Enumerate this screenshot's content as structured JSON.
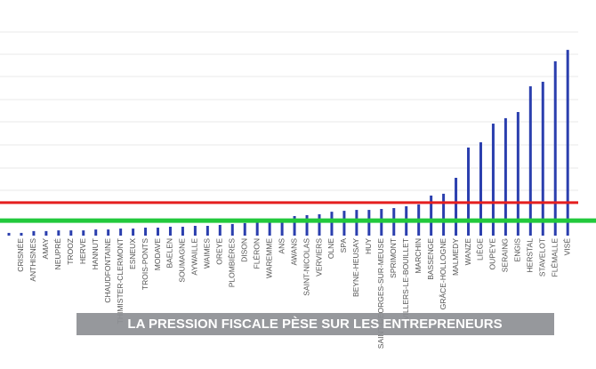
{
  "chart_data": {
    "type": "bar",
    "caption": "LA PRESSION FISCALE PÈSE SUR LES ENTREPRENEURS",
    "categories": [
      null,
      "CRISNÉE",
      "ANTHISNES",
      "AMAY",
      "NEUPRÉ",
      "TROOZ",
      "HERVE",
      "HANNUT",
      "CHAUDFONTAINE",
      "THIMISTER-CLERMONT",
      "ESNEUX",
      "TROIS-PONTS",
      "MODAVE",
      "BAELEN",
      "SOUMAGNE",
      "AYWAILLE",
      "WAIMES",
      "OREYE",
      "PLOMBIÈRES",
      "DISON",
      "FLÉRON",
      "WAREMME",
      "ANS",
      "AWANS",
      "SAINT-NICOLAS",
      "VERVIERS",
      "OLNE",
      "SPA",
      "BEYNE-HEUSAY",
      "HUY",
      "SAINT-GEORGES-SUR-MEUSE",
      "SPRIMONT",
      "VILLERS-LE-BOUILLET",
      "MARCHIN",
      "BASSENGE",
      "GRÂCE-HOLLOGNE",
      "MALMEDY",
      "WANZE",
      "LIÈGE",
      "OUPEYE",
      "SERAING",
      "ENGIS",
      "HERSTAL",
      "STAVELOT",
      "FLÉMALLE",
      "VISÉ"
    ],
    "values": [
      0.12,
      0.12,
      0.2,
      0.2,
      0.23,
      0.23,
      0.23,
      0.27,
      0.27,
      0.31,
      0.31,
      0.35,
      0.35,
      0.39,
      0.39,
      0.43,
      0.43,
      0.47,
      0.51,
      0.55,
      0.59,
      0.62,
      0.7,
      0.86,
      0.9,
      0.94,
      1.05,
      1.09,
      1.13,
      1.13,
      1.17,
      1.21,
      1.29,
      1.37,
      1.76,
      1.84,
      2.54,
      3.87,
      4.1,
      4.92,
      5.16,
      5.43,
      6.56,
      6.76,
      7.66,
      8.16
    ],
    "color": "#2b3fae",
    "ylim": [
      0,
      9
    ],
    "reference_lines": [
      {
        "value": 1.45,
        "color": "#e41e1e"
      },
      {
        "value": 0.66,
        "color": "#22c93c"
      }
    ]
  }
}
